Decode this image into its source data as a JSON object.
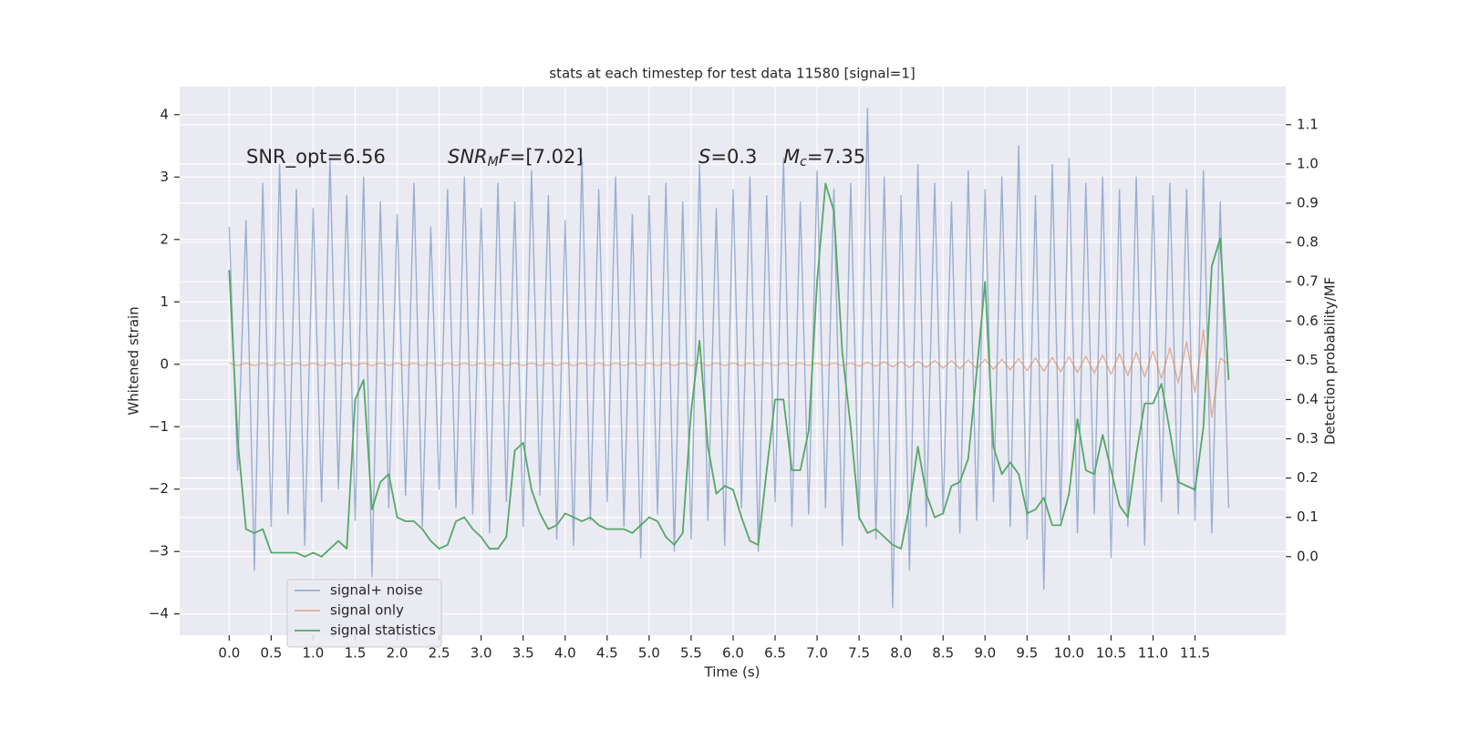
{
  "chart_data": {
    "type": "line",
    "title": "stats at each timestep for test data 11580 [signal=1]",
    "xlabel": "Time (s)",
    "ylabel": "Whitened strain",
    "y2label": "Detection probability/MF",
    "xlim": [
      -0.59,
      12.58
    ],
    "ylim": [
      -4.34,
      4.45
    ],
    "y2lim": [
      -0.2,
      1.197
    ],
    "xticks": [
      {
        "value": 0,
        "label": "0.0"
      },
      0.5,
      {
        "value": 1,
        "label": "1.0"
      },
      1.5,
      {
        "value": 2,
        "label": "2.0"
      },
      2.5,
      {
        "value": 3,
        "label": "3.0"
      },
      3.5,
      {
        "value": 4,
        "label": "4.0"
      },
      4.5,
      {
        "value": 5,
        "label": "5.0"
      },
      5.5,
      {
        "value": 6,
        "label": "6.0"
      },
      6.5,
      {
        "value": 7,
        "label": "7.0"
      },
      7.5,
      {
        "value": 8,
        "label": "8.0"
      },
      8.5,
      {
        "value": 9,
        "label": "9.0"
      },
      9.5,
      {
        "value": 10,
        "label": "10.0"
      },
      10.5,
      {
        "value": 11,
        "label": "11.0"
      },
      11.5
    ],
    "yticks": [
      {
        "value": -4,
        "label": "−4"
      },
      {
        "value": -3,
        "label": "−3"
      },
      {
        "value": -2,
        "label": "−2"
      },
      {
        "value": -1,
        "label": "−1"
      },
      0,
      1,
      2,
      3,
      4
    ],
    "y2ticks": [
      {
        "value": 0,
        "label": "0.0"
      },
      0.1,
      0.2,
      0.3,
      0.4,
      0.5,
      0.6,
      0.7,
      0.8,
      0.9,
      {
        "value": 1,
        "label": "1.0"
      },
      1.1
    ],
    "grid": true,
    "legend": "lower left",
    "annotations": [
      {
        "parts": [
          {
            "text": "SNR_opt=6.56"
          }
        ]
      },
      {
        "parts": [
          {
            "text": "SNR",
            "italic": true
          },
          {
            "text": "M",
            "italic": true,
            "sub": true
          },
          {
            "text": "F",
            "italic": true
          },
          {
            "text": "=[7.02]"
          }
        ]
      },
      {
        "parts": [
          {
            "text": "S",
            "italic": true
          },
          {
            "text": "=0.3"
          }
        ]
      },
      {
        "parts": [
          {
            "text": "M",
            "italic": true
          },
          {
            "text": "c",
            "italic": true,
            "sub": true
          },
          {
            "text": "=7.35"
          }
        ]
      }
    ],
    "x": [
      0,
      0.1,
      0.2,
      0.3,
      0.4,
      0.5,
      0.6,
      0.7,
      0.8,
      0.9,
      1,
      1.1,
      1.2,
      1.3,
      1.4,
      1.5,
      1.6,
      1.7,
      1.8,
      1.9,
      2,
      2.1,
      2.2,
      2.3,
      2.4,
      2.5,
      2.6,
      2.7,
      2.8,
      2.9,
      3,
      3.1,
      3.2,
      3.3,
      3.4,
      3.5,
      3.6,
      3.7,
      3.8,
      3.9,
      4,
      4.1,
      4.2,
      4.3,
      4.4,
      4.5,
      4.6,
      4.7,
      4.8,
      4.9,
      5,
      5.1,
      5.2,
      5.3,
      5.4,
      5.5,
      5.6,
      5.7,
      5.8,
      5.9,
      6,
      6.1,
      6.2,
      6.3,
      6.4,
      6.5,
      6.6,
      6.7,
      6.8,
      6.9,
      7,
      7.1,
      7.2,
      7.3,
      7.4,
      7.5,
      7.6,
      7.7,
      7.8,
      7.9,
      8,
      8.1,
      8.2,
      8.3,
      8.4,
      8.5,
      8.6,
      8.7,
      8.8,
      8.9,
      9,
      9.1,
      9.2,
      9.3,
      9.4,
      9.5,
      9.6,
      9.7,
      9.8,
      9.9,
      10,
      10.1,
      10.2,
      10.3,
      10.4,
      10.5,
      10.6,
      10.7,
      10.8,
      10.9,
      11,
      11.1,
      11.2,
      11.3,
      11.4,
      11.5,
      11.6,
      11.7,
      11.8,
      11.9
    ],
    "series": [
      {
        "name": "signal+ noise",
        "color": "#4c72b0",
        "opacity": 0.5,
        "axis": "y",
        "values": [
          2.2,
          -1.7,
          2.3,
          -3.3,
          2.9,
          -2.6,
          3.2,
          -2.4,
          2.8,
          -2.9,
          2.5,
          -2.2,
          3.3,
          -2.0,
          2.7,
          -2.5,
          3.0,
          -3.4,
          2.6,
          -2.3,
          2.4,
          -2.1,
          2.9,
          -2.6,
          2.2,
          -2.0,
          2.8,
          -2.3,
          3.0,
          -2.4,
          2.5,
          -2.7,
          2.9,
          -2.2,
          2.6,
          -2.6,
          3.1,
          -2.1,
          2.7,
          -2.8,
          2.3,
          -2.9,
          3.3,
          -2.5,
          2.8,
          -2.2,
          3.0,
          -2.6,
          2.4,
          -3.1,
          2.7,
          -2.4,
          2.9,
          -3.0,
          2.6,
          -2.8,
          3.2,
          -2.5,
          2.5,
          -2.9,
          2.8,
          -2.3,
          3.0,
          -3.0,
          2.7,
          -2.2,
          3.3,
          -2.6,
          2.6,
          -2.4,
          3.1,
          -2.3,
          2.8,
          -2.9,
          2.9,
          -2.5,
          4.1,
          -2.8,
          3.0,
          -3.9,
          2.7,
          -3.3,
          3.2,
          -2.6,
          2.9,
          -2.4,
          2.6,
          -2.7,
          3.1,
          -2.5,
          2.8,
          -2.2,
          3.0,
          -2.6,
          3.5,
          -2.8,
          2.7,
          -3.6,
          3.2,
          -2.5,
          3.3,
          -2.7,
          2.9,
          -2.4,
          3.0,
          -3.1,
          2.8,
          -2.6,
          3.0,
          -2.9,
          2.7,
          -2.2,
          2.9,
          -2.4,
          2.8,
          -2.5,
          3.1,
          -2.7,
          2.6,
          -2.3
        ]
      },
      {
        "name": "signal only",
        "color": "#dd8452",
        "opacity": 0.6,
        "axis": "y",
        "values": [
          0.02,
          -0.02,
          0.02,
          -0.02,
          0.02,
          -0.02,
          0.02,
          -0.02,
          0.02,
          -0.02,
          0.02,
          -0.02,
          0.02,
          -0.02,
          0.02,
          -0.02,
          0.02,
          -0.02,
          0.02,
          -0.02,
          0.02,
          -0.02,
          0.02,
          -0.02,
          0.02,
          -0.02,
          0.02,
          -0.02,
          0.02,
          -0.02,
          0.02,
          -0.02,
          0.02,
          -0.02,
          0.02,
          -0.02,
          0.02,
          -0.02,
          0.02,
          -0.02,
          0.02,
          -0.02,
          0.02,
          -0.02,
          0.02,
          -0.02,
          0.02,
          -0.02,
          0.02,
          -0.02,
          0.02,
          -0.02,
          0.02,
          -0.02,
          0.02,
          -0.02,
          0.02,
          -0.02,
          0.02,
          -0.02,
          0.02,
          -0.02,
          0.02,
          -0.02,
          0.02,
          -0.02,
          0.02,
          -0.02,
          0.02,
          -0.02,
          0.02,
          -0.02,
          0.02,
          -0.02,
          0.02,
          -0.03,
          0.03,
          -0.03,
          0.04,
          -0.04,
          0.04,
          -0.05,
          0.05,
          -0.05,
          0.06,
          -0.06,
          0.06,
          -0.07,
          0.07,
          -0.07,
          0.08,
          -0.08,
          0.08,
          -0.09,
          0.09,
          -0.1,
          0.1,
          -0.11,
          0.11,
          -0.12,
          0.12,
          -0.13,
          0.13,
          -0.14,
          0.15,
          -0.16,
          0.17,
          -0.18,
          0.19,
          -0.2,
          0.21,
          -0.23,
          0.26,
          -0.3,
          0.36,
          -0.45,
          0.55,
          -0.85,
          0.1,
          0.0
        ]
      },
      {
        "name": "signal statistics",
        "color": "#55a868",
        "opacity": 1,
        "axis": "y2",
        "values": [
          0.73,
          0.3,
          0.07,
          0.06,
          0.07,
          0.01,
          0.01,
          0.01,
          0.01,
          0.0,
          0.01,
          0.0,
          0.02,
          0.04,
          0.02,
          0.4,
          0.45,
          0.12,
          0.19,
          0.21,
          0.1,
          0.09,
          0.09,
          0.07,
          0.04,
          0.02,
          0.03,
          0.09,
          0.1,
          0.07,
          0.05,
          0.02,
          0.02,
          0.05,
          0.27,
          0.29,
          0.17,
          0.11,
          0.07,
          0.08,
          0.11,
          0.1,
          0.09,
          0.1,
          0.08,
          0.07,
          0.07,
          0.07,
          0.06,
          0.08,
          0.1,
          0.09,
          0.05,
          0.03,
          0.06,
          0.37,
          0.55,
          0.28,
          0.16,
          0.18,
          0.17,
          0.1,
          0.04,
          0.03,
          0.22,
          0.4,
          0.4,
          0.22,
          0.22,
          0.32,
          0.7,
          0.95,
          0.88,
          0.52,
          0.33,
          0.1,
          0.06,
          0.07,
          0.05,
          0.03,
          0.02,
          0.13,
          0.28,
          0.16,
          0.1,
          0.11,
          0.18,
          0.19,
          0.25,
          0.47,
          0.7,
          0.28,
          0.21,
          0.24,
          0.21,
          0.11,
          0.12,
          0.15,
          0.08,
          0.08,
          0.16,
          0.35,
          0.22,
          0.21,
          0.31,
          0.22,
          0.13,
          0.1,
          0.26,
          0.39,
          0.39,
          0.44,
          0.32,
          0.19,
          0.18,
          0.17,
          0.33,
          0.74,
          0.81,
          0.45
        ]
      }
    ]
  }
}
